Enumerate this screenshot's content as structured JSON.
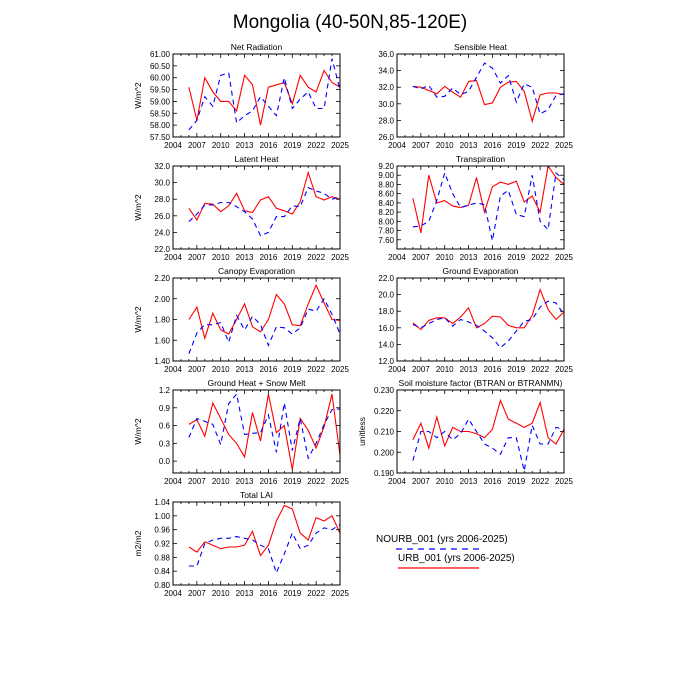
{
  "figure_title": "Mongolia (40-50N,85-120E)",
  "legend": {
    "entries": [
      {
        "label": "NOURB_001 (yrs 2006-2025)",
        "color": "#0000ff",
        "style": "dashed"
      },
      {
        "label": "URB_001 (yrs 2006-2025)",
        "color": "#ff0000",
        "style": "solid"
      }
    ]
  },
  "chart_data": [
    {
      "type": "line",
      "title": "Net Radiation",
      "ylabel": "W/m^2",
      "xlim": [
        2004,
        2025
      ],
      "ylim": [
        57.5,
        61.0
      ],
      "x_ticks": [
        "2004",
        "2007",
        "2010",
        "2013",
        "2016",
        "2019",
        "2022",
        "2025"
      ],
      "y_ticks": [
        "57.50",
        "58.00",
        "58.50",
        "59.00",
        "59.50",
        "60.00",
        "60.50",
        "61.00"
      ],
      "x": [
        2006,
        2007,
        2008,
        2009,
        2010,
        2011,
        2012,
        2013,
        2014,
        2015,
        2016,
        2017,
        2018,
        2019,
        2020,
        2021,
        2022,
        2023,
        2024,
        2025
      ],
      "series": [
        {
          "name": "URB_001",
          "values": [
            59.6,
            58.2,
            60.0,
            59.4,
            59.0,
            59.0,
            58.6,
            60.1,
            59.7,
            58.0,
            59.6,
            59.7,
            59.8,
            58.9,
            60.1,
            59.6,
            59.4,
            60.3,
            59.8,
            59.6
          ]
        },
        {
          "name": "NOURB_001",
          "values": [
            57.8,
            58.2,
            59.2,
            58.8,
            60.1,
            60.2,
            58.1,
            58.4,
            58.6,
            59.2,
            58.8,
            58.4,
            60.0,
            58.7,
            59.1,
            59.4,
            58.7,
            58.7,
            60.8,
            59.5
          ]
        }
      ]
    },
    {
      "type": "line",
      "title": "Sensible Heat",
      "ylabel": "",
      "xlim": [
        2004,
        2025
      ],
      "ylim": [
        26.0,
        36.0
      ],
      "x_ticks": [
        "2004",
        "2007",
        "2010",
        "2013",
        "2016",
        "2019",
        "2022",
        "2025"
      ],
      "y_ticks": [
        "26.0",
        "28.0",
        "30.0",
        "32.0",
        "34.0",
        "36.0"
      ],
      "x": [
        2006,
        2007,
        2008,
        2009,
        2010,
        2011,
        2012,
        2013,
        2014,
        2015,
        2016,
        2017,
        2018,
        2019,
        2020,
        2021,
        2022,
        2023,
        2024,
        2025
      ],
      "series": [
        {
          "name": "URB_001",
          "values": [
            32.1,
            32.0,
            31.6,
            31.2,
            32.1,
            31.4,
            30.8,
            32.7,
            32.8,
            29.9,
            30.1,
            32.0,
            32.6,
            32.7,
            31.5,
            27.9,
            31.1,
            31.3,
            31.3,
            31.1
          ]
        },
        {
          "name": "NOURB_001",
          "values": [
            32.1,
            31.8,
            32.2,
            30.8,
            30.9,
            31.9,
            31.1,
            31.5,
            33.2,
            34.9,
            34.3,
            32.5,
            33.4,
            30.2,
            32.4,
            32.0,
            28.8,
            29.3,
            31.0,
            31.2
          ]
        }
      ]
    },
    {
      "type": "line",
      "title": "Latent Heat",
      "ylabel": "W/m^2",
      "xlim": [
        2004,
        2025
      ],
      "ylim": [
        22.0,
        32.0
      ],
      "x_ticks": [
        "2004",
        "2007",
        "2010",
        "2013",
        "2016",
        "2019",
        "2022",
        "2025"
      ],
      "y_ticks": [
        "22.0",
        "24.0",
        "26.0",
        "28.0",
        "30.0",
        "32.0"
      ],
      "x": [
        2006,
        2007,
        2008,
        2009,
        2010,
        2011,
        2012,
        2013,
        2014,
        2015,
        2016,
        2017,
        2018,
        2019,
        2020,
        2021,
        2022,
        2023,
        2024,
        2025
      ],
      "series": [
        {
          "name": "URB_001",
          "values": [
            26.9,
            25.5,
            27.5,
            27.4,
            26.5,
            27.2,
            28.7,
            26.6,
            26.4,
            27.9,
            28.3,
            26.9,
            26.6,
            26.2,
            27.7,
            31.2,
            28.3,
            27.9,
            28.3,
            28.0
          ]
        },
        {
          "name": "NOURB_001",
          "values": [
            25.3,
            26.2,
            27.3,
            27.3,
            27.6,
            27.6,
            27.1,
            26.5,
            25.6,
            23.6,
            24.0,
            25.9,
            25.9,
            27.2,
            27.1,
            29.4,
            29.0,
            28.7,
            28.0,
            28.3
          ]
        }
      ]
    },
    {
      "type": "line",
      "title": "Transpiration",
      "ylabel": "",
      "xlim": [
        2004,
        2025
      ],
      "ylim": [
        7.4,
        9.2
      ],
      "x_ticks": [
        "2004",
        "2007",
        "2010",
        "2013",
        "2016",
        "2019",
        "2022",
        "2025"
      ],
      "y_ticks": [
        "7.60",
        "7.80",
        "8.00",
        "8.20",
        "8.40",
        "8.60",
        "8.80",
        "9.00",
        "9.20"
      ],
      "x": [
        2006,
        2007,
        2008,
        2009,
        2010,
        2011,
        2012,
        2013,
        2014,
        2015,
        2016,
        2017,
        2018,
        2019,
        2020,
        2021,
        2022,
        2023,
        2024,
        2025
      ],
      "series": [
        {
          "name": "URB_001",
          "values": [
            8.5,
            7.75,
            9.0,
            8.4,
            8.45,
            8.33,
            8.3,
            8.35,
            8.95,
            8.2,
            8.75,
            8.85,
            8.8,
            8.87,
            8.42,
            8.55,
            8.2,
            9.2,
            8.95,
            8.8
          ]
        },
        {
          "name": "NOURB_001",
          "values": [
            7.88,
            7.9,
            8.0,
            8.45,
            9.05,
            8.6,
            8.3,
            8.35,
            8.4,
            8.36,
            7.58,
            8.55,
            8.67,
            8.15,
            8.1,
            9.0,
            8.0,
            7.82,
            9.05,
            8.9
          ]
        }
      ]
    },
    {
      "type": "line",
      "title": "Canopy Evaporation",
      "ylabel": "W/m^2",
      "xlim": [
        2004,
        2025
      ],
      "ylim": [
        1.4,
        2.2
      ],
      "x_ticks": [
        "2004",
        "2007",
        "2010",
        "2013",
        "2016",
        "2019",
        "2022",
        "2025"
      ],
      "y_ticks": [
        "1.40",
        "1.60",
        "1.80",
        "2.00",
        "2.20"
      ],
      "x": [
        2006,
        2007,
        2008,
        2009,
        2010,
        2011,
        2012,
        2013,
        2014,
        2015,
        2016,
        2017,
        2018,
        2019,
        2020,
        2021,
        2022,
        2023,
        2024,
        2025
      ],
      "series": [
        {
          "name": "URB_001",
          "values": [
            1.8,
            1.92,
            1.62,
            1.86,
            1.7,
            1.66,
            1.8,
            1.95,
            1.73,
            1.68,
            1.8,
            2.04,
            1.95,
            1.75,
            1.74,
            1.95,
            2.13,
            1.96,
            1.8,
            1.79
          ]
        },
        {
          "name": "NOURB_001",
          "values": [
            1.47,
            1.67,
            1.75,
            1.75,
            1.77,
            1.58,
            1.84,
            1.7,
            1.83,
            1.75,
            1.55,
            1.73,
            1.72,
            1.66,
            1.72,
            1.9,
            1.88,
            2.0,
            1.85,
            1.66
          ]
        }
      ]
    },
    {
      "type": "line",
      "title": "Ground Evaporation",
      "ylabel": "",
      "xlim": [
        2004,
        2025
      ],
      "ylim": [
        12.0,
        22.0
      ],
      "x_ticks": [
        "2004",
        "2007",
        "2010",
        "2013",
        "2016",
        "2019",
        "2022",
        "2025"
      ],
      "y_ticks": [
        "12.0",
        "14.0",
        "16.0",
        "18.0",
        "20.0",
        "22.0"
      ],
      "x": [
        2006,
        2007,
        2008,
        2009,
        2010,
        2011,
        2012,
        2013,
        2014,
        2015,
        2016,
        2017,
        2018,
        2019,
        2020,
        2021,
        2022,
        2023,
        2024,
        2025
      ],
      "series": [
        {
          "name": "URB_001",
          "values": [
            16.6,
            15.8,
            16.9,
            17.2,
            17.2,
            16.5,
            17.3,
            18.4,
            16.0,
            16.5,
            17.4,
            17.3,
            16.3,
            16.0,
            16.0,
            17.5,
            20.6,
            18.2,
            17.0,
            17.9
          ]
        },
        {
          "name": "NOURB_001",
          "values": [
            16.4,
            16.0,
            16.5,
            17.0,
            17.2,
            16.2,
            17.0,
            16.7,
            16.3,
            15.6,
            14.8,
            13.6,
            14.4,
            15.6,
            16.8,
            17.0,
            18.5,
            19.2,
            19.0,
            17.6
          ]
        }
      ]
    },
    {
      "type": "line",
      "title": "Ground Heat + Snow Melt",
      "ylabel": "W/m^2",
      "xlim": [
        2004,
        2025
      ],
      "ylim": [
        -0.2,
        1.2
      ],
      "x_ticks": [
        "2004",
        "2007",
        "2010",
        "2013",
        "2016",
        "2019",
        "2022",
        "2025"
      ],
      "y_ticks": [
        "0.0",
        "0.3",
        "0.6",
        "0.9",
        "1.2"
      ],
      "x": [
        2006,
        2007,
        2008,
        2009,
        2010,
        2011,
        2012,
        2013,
        2014,
        2015,
        2016,
        2017,
        2018,
        2019,
        2020,
        2021,
        2022,
        2023,
        2024,
        2025
      ],
      "series": [
        {
          "name": "URB_001",
          "values": [
            0.62,
            0.7,
            0.42,
            0.98,
            0.72,
            0.45,
            0.3,
            0.07,
            0.82,
            0.34,
            1.13,
            0.48,
            0.6,
            -0.14,
            0.72,
            0.52,
            0.22,
            0.58,
            1.13,
            0.1
          ]
        },
        {
          "name": "NOURB_001",
          "values": [
            0.4,
            0.72,
            0.67,
            0.62,
            0.28,
            0.97,
            1.13,
            0.45,
            0.47,
            0.48,
            0.78,
            0.15,
            0.98,
            0.18,
            0.72,
            0.05,
            0.3,
            0.62,
            0.87,
            0.88
          ]
        }
      ]
    },
    {
      "type": "line",
      "title": "Soil moisture factor (BTRAN or BTRANMN)",
      "ylabel": "unitless",
      "xlim": [
        2004,
        2025
      ],
      "ylim": [
        0.19,
        0.23
      ],
      "x_ticks": [
        "2004",
        "2007",
        "2010",
        "2013",
        "2016",
        "2019",
        "2022",
        "2025"
      ],
      "y_ticks": [
        "0.190",
        "0.200",
        "0.210",
        "0.220",
        "0.230"
      ],
      "x": [
        2006,
        2007,
        2008,
        2009,
        2010,
        2011,
        2012,
        2013,
        2014,
        2015,
        2016,
        2017,
        2018,
        2019,
        2020,
        2021,
        2022,
        2023,
        2024,
        2025
      ],
      "series": [
        {
          "name": "URB_001",
          "values": [
            0.206,
            0.214,
            0.202,
            0.217,
            0.203,
            0.212,
            0.21,
            0.21,
            0.209,
            0.207,
            0.211,
            0.225,
            0.216,
            0.214,
            0.212,
            0.214,
            0.224,
            0.207,
            0.204,
            0.211
          ]
        },
        {
          "name": "NOURB_001",
          "values": [
            0.196,
            0.21,
            0.21,
            0.207,
            0.21,
            0.206,
            0.209,
            0.216,
            0.21,
            0.204,
            0.202,
            0.199,
            0.207,
            0.207,
            0.191,
            0.213,
            0.204,
            0.204,
            0.212,
            0.211
          ]
        }
      ]
    },
    {
      "type": "line",
      "title": "Total LAI",
      "ylabel": "m2/m2",
      "xlim": [
        2004,
        2025
      ],
      "ylim": [
        0.8,
        1.04
      ],
      "x_ticks": [
        "2004",
        "2007",
        "2010",
        "2013",
        "2016",
        "2019",
        "2022",
        "2025"
      ],
      "y_ticks": [
        "0.80",
        "0.84",
        "0.88",
        "0.92",
        "0.96",
        "1.00",
        "1.04"
      ],
      "x": [
        2006,
        2007,
        2008,
        2009,
        2010,
        2011,
        2012,
        2013,
        2014,
        2015,
        2016,
        2017,
        2018,
        2019,
        2020,
        2021,
        2022,
        2023,
        2024,
        2025
      ],
      "series": [
        {
          "name": "URB_001",
          "values": [
            0.91,
            0.895,
            0.925,
            0.915,
            0.905,
            0.91,
            0.91,
            0.915,
            0.955,
            0.885,
            0.915,
            0.985,
            1.03,
            1.02,
            0.95,
            0.93,
            0.995,
            0.985,
            1.0,
            0.95
          ]
        },
        {
          "name": "NOURB_001",
          "values": [
            0.855,
            0.855,
            0.92,
            0.93,
            0.935,
            0.935,
            0.94,
            0.935,
            0.93,
            0.915,
            0.905,
            0.835,
            0.89,
            0.95,
            0.905,
            0.915,
            0.95,
            0.965,
            0.96,
            0.975
          ]
        }
      ]
    }
  ]
}
